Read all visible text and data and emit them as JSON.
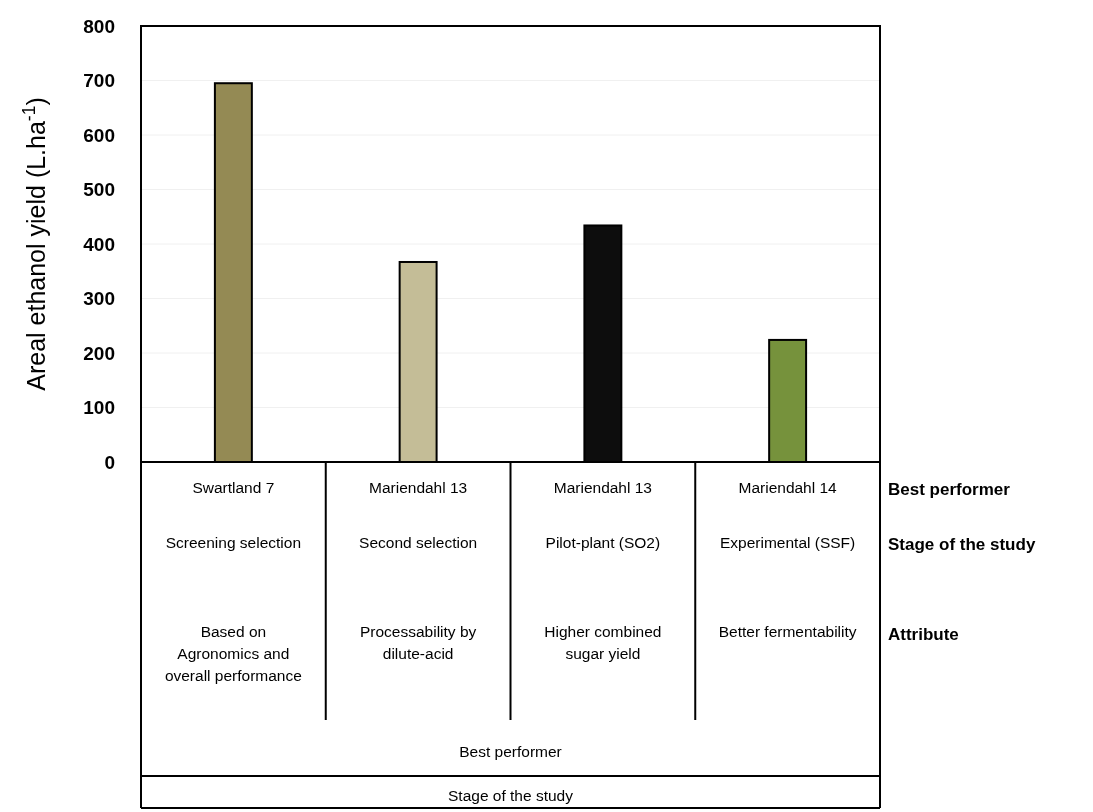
{
  "chart_data": {
    "type": "bar",
    "ylabel": "Areal ethanol yield (L.ha$^{-1}$)",
    "categories": [
      "Swartland 7",
      "Mariendahl 13",
      "Mariendahl 13",
      "Mariendahl 14"
    ],
    "values": [
      695,
      367,
      434,
      224
    ],
    "colors": [
      "#948a54",
      "#c4bd97",
      "#0d0d0d",
      "#76923c"
    ],
    "ylim": [
      0,
      800
    ],
    "yticks": [
      0,
      100,
      200,
      300,
      400,
      500,
      600,
      700,
      800
    ],
    "grid": "y",
    "annotations": [
      "Screening selection",
      "Second selection",
      "Pilot-plant (SO2)",
      "Experimental (SSF)",
      "Based on Agronomics and overall performance",
      "Processability by dilute-acid",
      "Higher combined sugar yield",
      "Better fermentability",
      "Best performer",
      "Stage of the study",
      "Attribute",
      "Best performer",
      "Stage of the study"
    ]
  }
}
